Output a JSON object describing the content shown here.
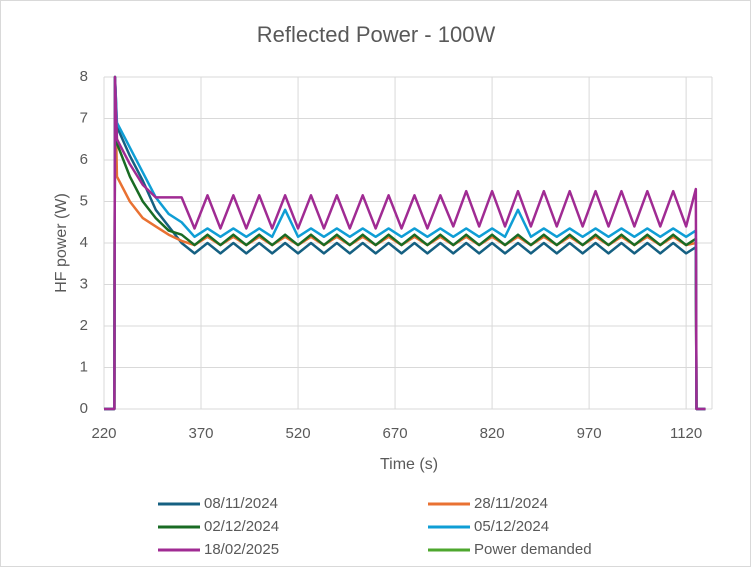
{
  "chart_data": {
    "type": "line",
    "title": "Reflected Power - 100W",
    "x_label": "Time (s)",
    "y_label": "HF power (W)",
    "x": [
      220,
      236,
      237,
      240,
      260,
      280,
      300,
      320,
      340,
      360,
      380,
      400,
      420,
      440,
      460,
      480,
      500,
      520,
      540,
      560,
      580,
      600,
      620,
      640,
      660,
      680,
      700,
      720,
      740,
      760,
      780,
      800,
      820,
      840,
      860,
      880,
      900,
      920,
      940,
      960,
      980,
      1000,
      1020,
      1040,
      1060,
      1080,
      1100,
      1120,
      1135,
      1136,
      1150
    ],
    "xlim": [
      220,
      1160
    ],
    "xticks": [
      220,
      370,
      520,
      670,
      820,
      970,
      1120
    ],
    "ylim": [
      0,
      8
    ],
    "yticks": [
      0,
      1,
      2,
      3,
      4,
      5,
      6,
      7,
      8
    ],
    "grid": true,
    "legend": "bottom",
    "series": [
      {
        "name": "08/11/2024",
        "color": "#156082",
        "values": [
          0,
          0,
          8,
          6.8,
          6.1,
          5.5,
          4.8,
          4.4,
          4.0,
          3.75,
          4.0,
          3.75,
          4.0,
          3.75,
          4.0,
          3.75,
          4.0,
          3.75,
          4.0,
          3.75,
          4.0,
          3.75,
          4.0,
          3.75,
          4.0,
          3.75,
          4.0,
          3.75,
          4.0,
          3.75,
          4.0,
          3.75,
          4.0,
          3.75,
          4.0,
          3.75,
          4.0,
          3.75,
          4.0,
          3.75,
          4.0,
          3.75,
          4.0,
          3.75,
          4.0,
          3.75,
          4.0,
          3.75,
          3.9,
          0,
          0
        ]
      },
      {
        "name": "28/11/2024",
        "color": "#e97132",
        "values": [
          0,
          0,
          8,
          5.6,
          5.0,
          4.6,
          4.4,
          4.2,
          4.05,
          3.95,
          4.15,
          3.95,
          4.15,
          3.95,
          4.15,
          3.95,
          4.15,
          3.95,
          4.15,
          3.95,
          4.15,
          3.95,
          4.15,
          3.95,
          4.15,
          3.95,
          4.15,
          3.95,
          4.15,
          3.95,
          4.15,
          3.95,
          4.15,
          3.95,
          4.15,
          3.95,
          4.15,
          3.95,
          4.15,
          3.95,
          4.15,
          3.95,
          4.15,
          3.95,
          4.15,
          3.95,
          4.15,
          3.95,
          4.0,
          0,
          0
        ]
      },
      {
        "name": "02/12/2024",
        "color": "#196b24",
        "values": [
          0,
          0,
          8,
          6.4,
          5.6,
          5.0,
          4.6,
          4.3,
          4.2,
          3.95,
          4.2,
          3.95,
          4.2,
          3.95,
          4.2,
          3.95,
          4.2,
          3.95,
          4.2,
          3.95,
          4.2,
          3.95,
          4.2,
          3.95,
          4.2,
          3.95,
          4.2,
          3.95,
          4.2,
          3.95,
          4.2,
          3.95,
          4.2,
          3.95,
          4.2,
          3.95,
          4.2,
          3.95,
          4.2,
          3.95,
          4.2,
          3.95,
          4.2,
          3.95,
          4.2,
          3.95,
          4.2,
          3.95,
          4.1,
          0,
          0
        ]
      },
      {
        "name": "05/12/2024",
        "color": "#0f9ed5",
        "values": [
          0,
          0,
          8,
          6.9,
          6.3,
          5.7,
          5.1,
          4.7,
          4.5,
          4.15,
          4.35,
          4.15,
          4.35,
          4.15,
          4.35,
          4.15,
          4.8,
          4.15,
          4.35,
          4.15,
          4.35,
          4.15,
          4.35,
          4.15,
          4.35,
          4.15,
          4.35,
          4.15,
          4.35,
          4.15,
          4.35,
          4.15,
          4.35,
          4.15,
          4.8,
          4.15,
          4.35,
          4.15,
          4.35,
          4.15,
          4.35,
          4.15,
          4.35,
          4.15,
          4.35,
          4.15,
          4.35,
          4.15,
          4.3,
          0,
          0
        ]
      },
      {
        "name": "18/02/2025",
        "color": "#a02b93",
        "values": [
          0,
          0,
          8,
          6.5,
          5.9,
          5.4,
          5.1,
          5.1,
          5.1,
          4.35,
          5.15,
          4.35,
          5.15,
          4.35,
          5.15,
          4.35,
          5.15,
          4.35,
          5.15,
          4.35,
          5.15,
          4.35,
          5.15,
          4.35,
          5.15,
          4.35,
          5.15,
          4.35,
          5.15,
          4.4,
          5.25,
          4.4,
          5.25,
          4.4,
          5.25,
          4.4,
          5.25,
          4.4,
          5.25,
          4.4,
          5.25,
          4.4,
          5.25,
          4.4,
          5.25,
          4.4,
          5.25,
          4.4,
          5.3,
          0,
          0
        ]
      },
      {
        "name": "Power demanded",
        "color": "#4ea72e",
        "values": [
          null,
          null,
          null,
          null,
          null,
          null,
          null,
          null,
          null,
          null,
          null,
          null,
          null,
          null,
          null,
          null,
          null,
          null,
          null,
          null,
          null,
          null,
          null,
          null,
          null,
          null,
          null,
          null,
          null,
          null,
          null,
          null,
          null,
          null,
          null,
          null,
          null,
          null,
          null,
          null,
          null,
          null,
          null,
          null,
          null,
          null,
          null,
          null,
          null,
          null,
          null
        ]
      }
    ]
  }
}
